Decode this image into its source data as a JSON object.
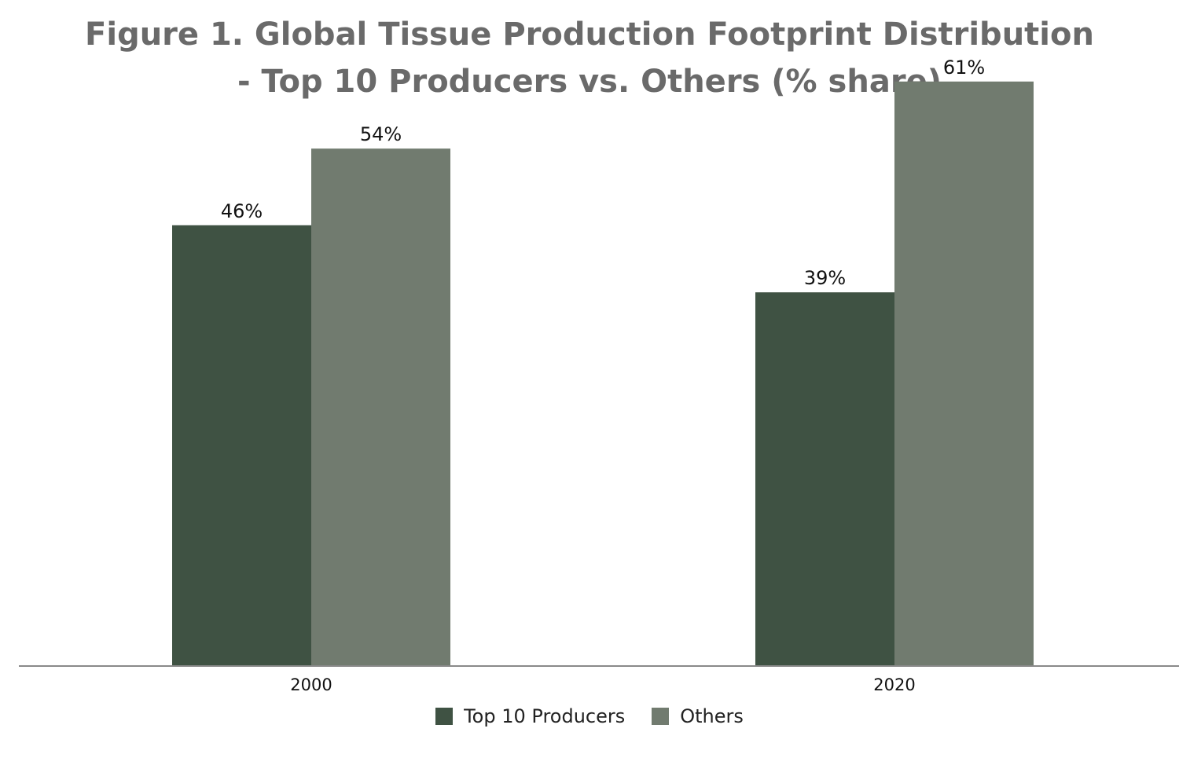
{
  "chart_data": {
    "type": "bar",
    "title": "Figure 1. Global Tissue Production Footprint Distribution",
    "subtitle": "- Top 10 Producers vs. Others (% share)",
    "categories": [
      "2000",
      "2020"
    ],
    "series": [
      {
        "name": "Top 10 Producers",
        "values": [
          46,
          39
        ],
        "labels": [
          "46%",
          "39%"
        ],
        "color": "#3f5243"
      },
      {
        "name": "Others",
        "values": [
          54,
          61
        ],
        "labels": [
          "54%",
          "61%"
        ],
        "color": "#717b6f"
      }
    ],
    "ylim": [
      0,
      70
    ],
    "grid": false,
    "legend_position": "bottom",
    "axis_color": "#8a8a8a"
  }
}
